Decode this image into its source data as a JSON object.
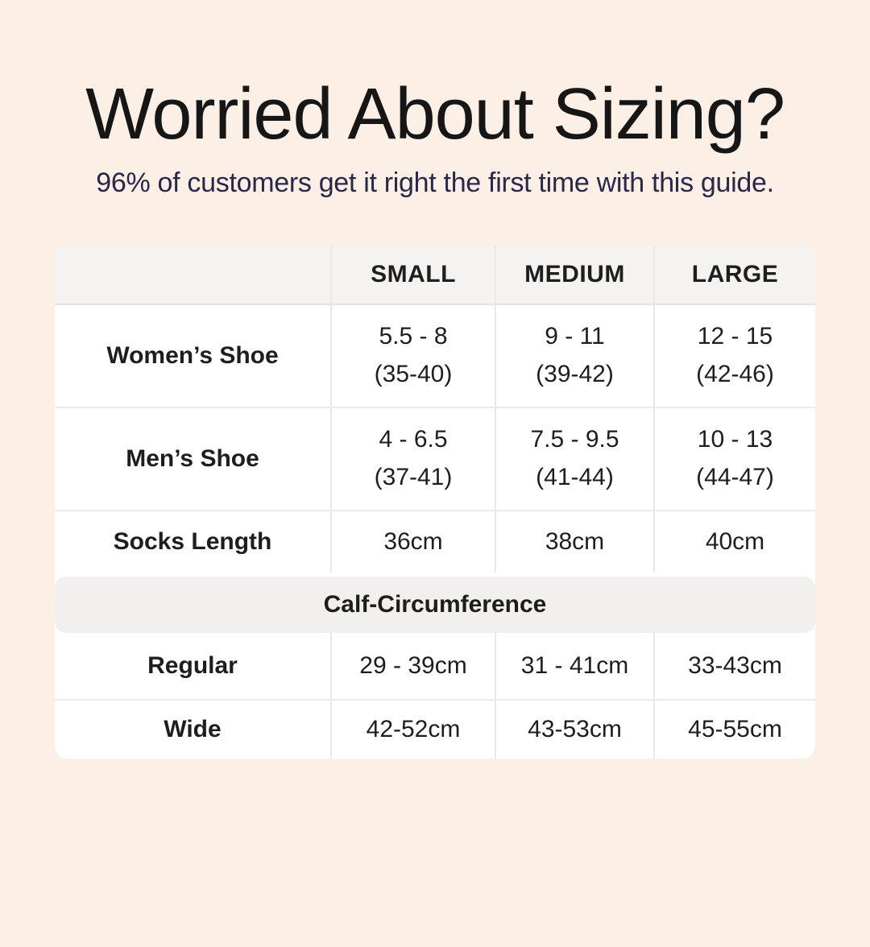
{
  "header": {
    "title": "Worried About Sizing?",
    "subtitle": "96% of customers get it right the first time with this guide."
  },
  "colors": {
    "page_background": "#fcefe5",
    "title_text": "#161616",
    "subtitle_text": "#29284a",
    "card_background": "#ffffff",
    "header_row_background": "#f4f3f2",
    "section_band_background": "#f1f0ee",
    "divider": "#eae8e6",
    "table_text": "#1e1e1e"
  },
  "table": {
    "columns": [
      "",
      "SMALL",
      "MEDIUM",
      "LARGE"
    ],
    "shoe_rows": [
      {
        "label": "Women’s Shoe",
        "values": [
          [
            "5.5 - 8",
            "(35-40)"
          ],
          [
            "9 - 11",
            "(39-42)"
          ],
          [
            "12 - 15",
            "(42-46)"
          ]
        ]
      },
      {
        "label": "Men’s Shoe",
        "values": [
          [
            "4 - 6.5",
            "(37-41)"
          ],
          [
            "7.5 - 9.5",
            "(41-44)"
          ],
          [
            "10 - 13",
            "(44-47)"
          ]
        ]
      },
      {
        "label": "Socks Length",
        "values": [
          [
            "36cm"
          ],
          [
            "38cm"
          ],
          [
            "40cm"
          ]
        ]
      }
    ],
    "section_header": "Calf-Circumference",
    "calf_rows": [
      {
        "label": "Regular",
        "values": [
          [
            "29 - 39cm"
          ],
          [
            "31 - 41cm"
          ],
          [
            "33-43cm"
          ]
        ]
      },
      {
        "label": "Wide",
        "values": [
          [
            "42-52cm"
          ],
          [
            "43-53cm"
          ],
          [
            "45-55cm"
          ]
        ]
      }
    ]
  },
  "chart_data": {
    "type": "table",
    "title": "Worried About Sizing?",
    "subtitle": "96% of customers get it right the first time with this guide.",
    "columns": [
      "",
      "SMALL",
      "MEDIUM",
      "LARGE"
    ],
    "rows": [
      [
        "Women’s Shoe",
        "5.5 - 8 (35-40)",
        "9 - 11 (39-42)",
        "12 - 15 (42-46)"
      ],
      [
        "Men’s Shoe",
        "4 - 6.5 (37-41)",
        "7.5 - 9.5 (41-44)",
        "10 - 13 (44-47)"
      ],
      [
        "Socks Length",
        "36cm",
        "38cm",
        "40cm"
      ],
      [
        "Calf-Circumference",
        "",
        "",
        ""
      ],
      [
        "Regular",
        "29 - 39cm",
        "31 - 41cm",
        "33-43cm"
      ],
      [
        "Wide",
        "42-52cm",
        "43-53cm",
        "45-55cm"
      ]
    ]
  }
}
